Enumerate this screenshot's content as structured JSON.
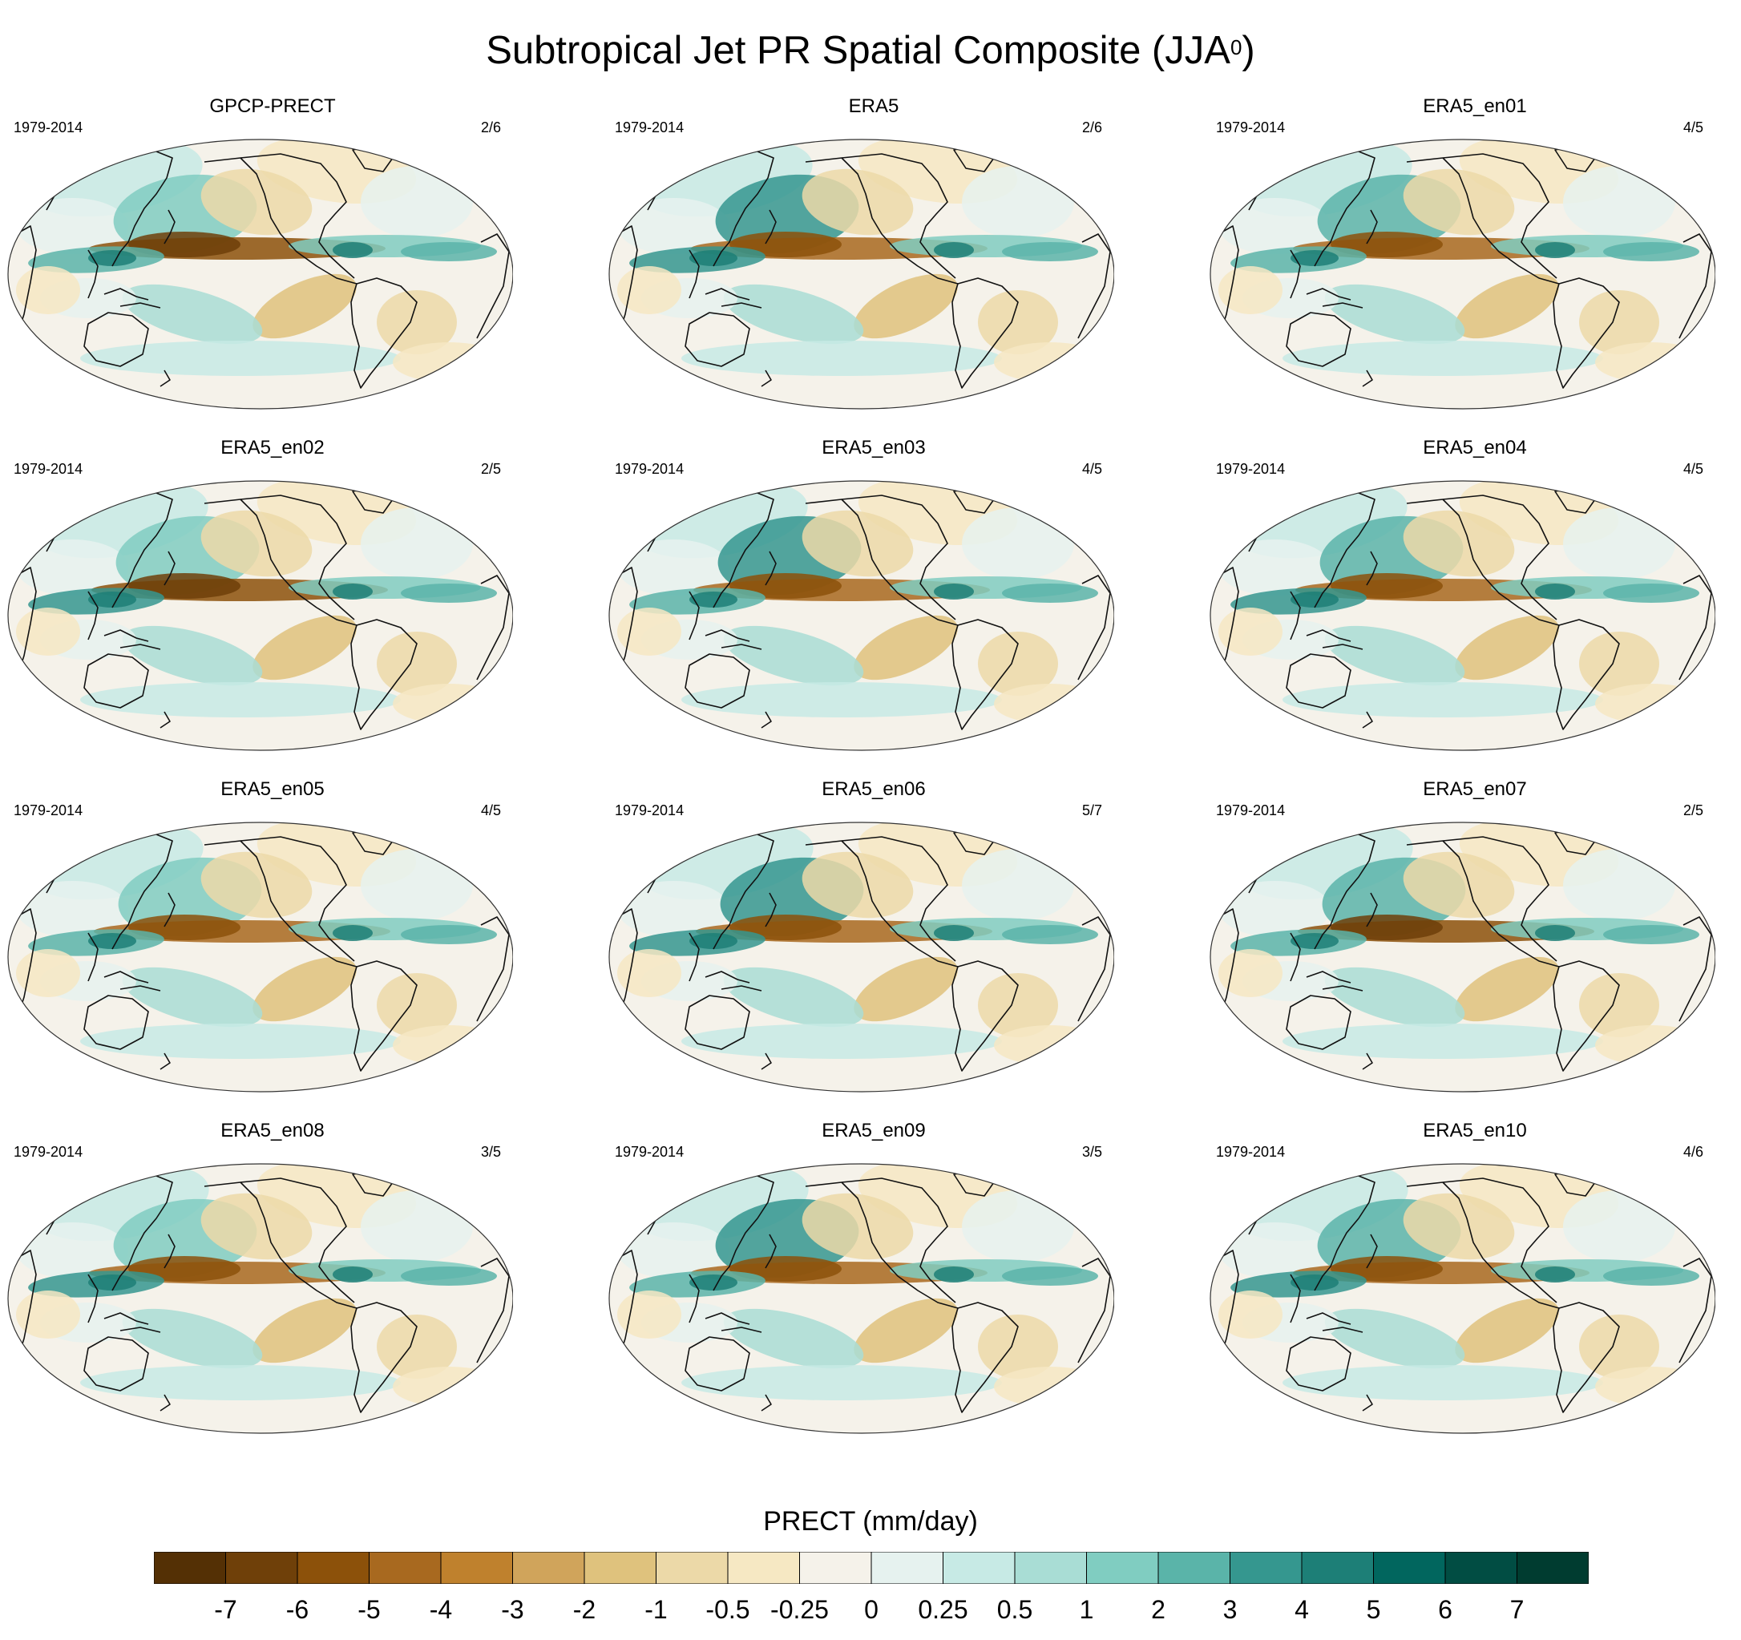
{
  "title": "Subtropical Jet PR Spatial Composite (JJA",
  "title_sup": "0",
  "title_end": ")",
  "panels": [
    {
      "name": "GPCP-PRECT",
      "period": "1979-2014",
      "count": "2/6"
    },
    {
      "name": "ERA5",
      "period": "1979-2014",
      "count": "2/6"
    },
    {
      "name": "ERA5_en01",
      "period": "1979-2014",
      "count": "4/5"
    },
    {
      "name": "ERA5_en02",
      "period": "1979-2014",
      "count": "2/5"
    },
    {
      "name": "ERA5_en03",
      "period": "1979-2014",
      "count": "4/5"
    },
    {
      "name": "ERA5_en04",
      "period": "1979-2014",
      "count": "4/5"
    },
    {
      "name": "ERA5_en05",
      "period": "1979-2014",
      "count": "4/5"
    },
    {
      "name": "ERA5_en06",
      "period": "1979-2014",
      "count": "5/7"
    },
    {
      "name": "ERA5_en07",
      "period": "1979-2014",
      "count": "2/5"
    },
    {
      "name": "ERA5_en08",
      "period": "1979-2014",
      "count": "3/5"
    },
    {
      "name": "ERA5_en09",
      "period": "1979-2014",
      "count": "3/5"
    },
    {
      "name": "ERA5_en10",
      "period": "1979-2014",
      "count": "4/6"
    }
  ],
  "colorbar": {
    "title": "PRECT (mm/day)",
    "ticks": [
      "-7",
      "-6",
      "-5",
      "-4",
      "-3",
      "-2",
      "-1",
      "-0.5",
      "-0.25",
      "0",
      "0.25",
      "0.5",
      "1",
      "2",
      "3",
      "4",
      "5",
      "6",
      "7"
    ],
    "colors": [
      "#543005",
      "#6f4009",
      "#8c510a",
      "#a8691f",
      "#bf812d",
      "#d0a45b",
      "#dfc27d",
      "#ecd9a8",
      "#f6e8c3",
      "#f5f2ea",
      "#e6f2ef",
      "#c7eae5",
      "#a9ddd5",
      "#80cdc1",
      "#5ab4a9",
      "#35978f",
      "#1d7f77",
      "#01665e",
      "#014d43",
      "#003c30"
    ]
  },
  "chart_data": {
    "type": "heatmap",
    "title": "Subtropical Jet PR Spatial Composite (JJA0)",
    "variable": "PRECT",
    "units": "mm/day",
    "projection": "Robinson-like global ellipse, Pacific-centred",
    "levels": [
      -7,
      -6,
      -5,
      -4,
      -3,
      -2,
      -1,
      -0.5,
      -0.25,
      0,
      0.25,
      0.5,
      1,
      2,
      3,
      4,
      5,
      6,
      7
    ],
    "panels": [
      "GPCP-PRECT",
      "ERA5",
      "ERA5_en01",
      "ERA5_en02",
      "ERA5_en03",
      "ERA5_en04",
      "ERA5_en05",
      "ERA5_en06",
      "ERA5_en07",
      "ERA5_en08",
      "ERA5_en09",
      "ERA5_en10"
    ],
    "period": "1979-2014"
  }
}
